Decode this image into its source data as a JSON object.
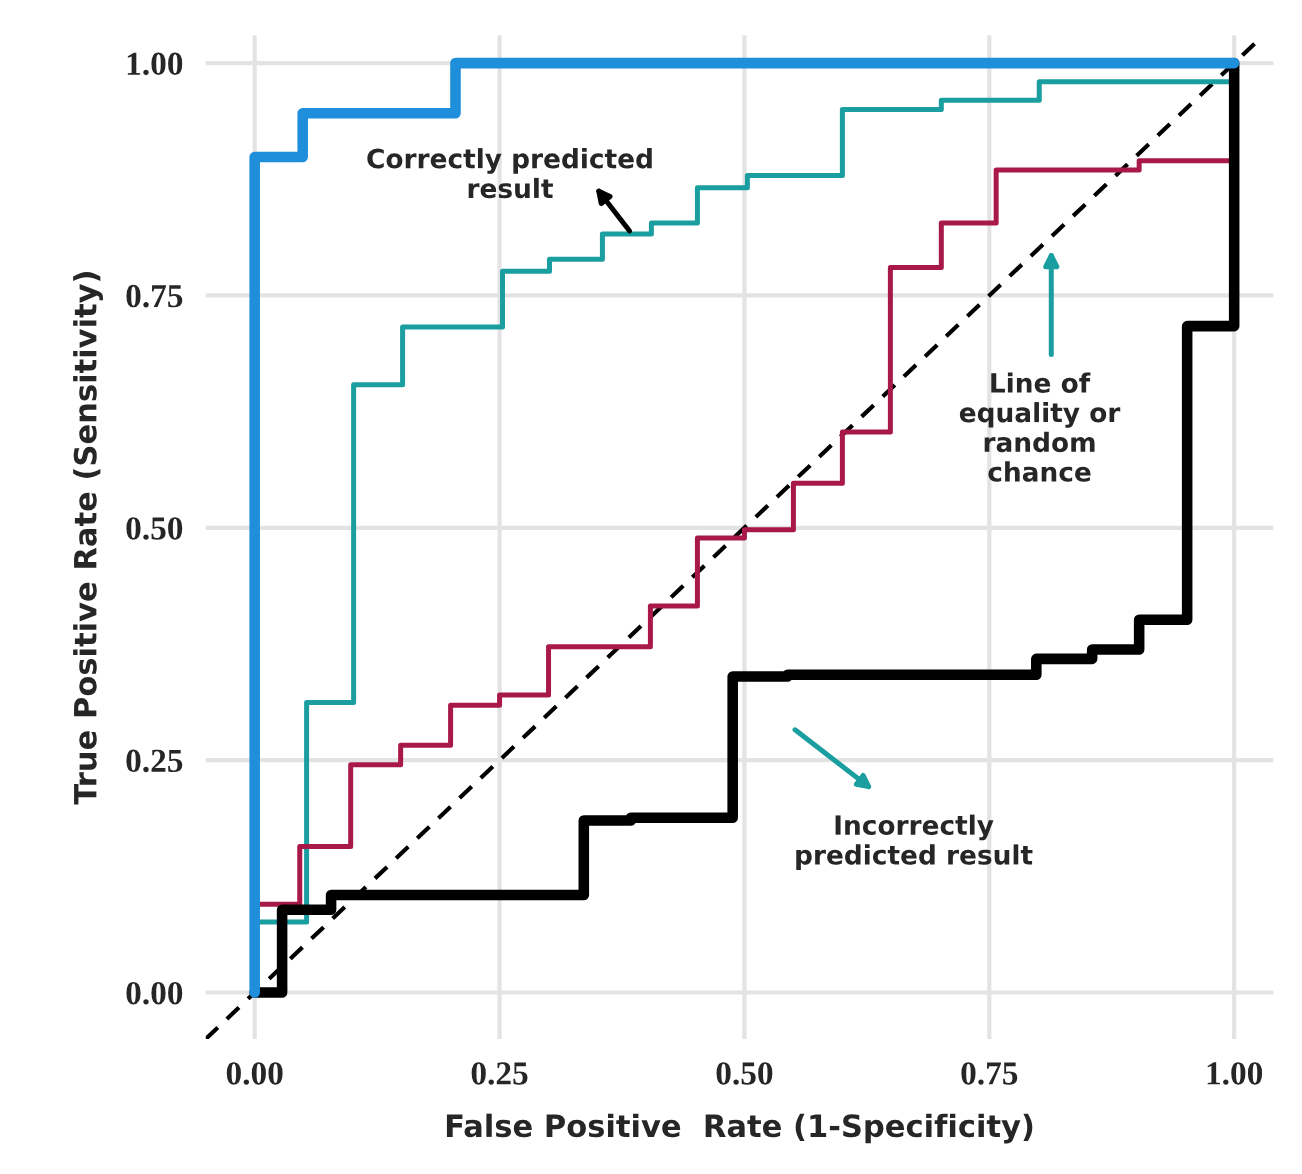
{
  "chart_data": {
    "type": "step",
    "xlabel": "False Positive  Rate (1-Specificity)",
    "ylabel": "True Positive Rate (Sensitivity)",
    "xlim": [
      -0.05,
      1.04
    ],
    "ylim": [
      -0.05,
      1.03
    ],
    "xticks": [
      {
        "value": 0,
        "label": "0.00"
      },
      {
        "value": 0.25,
        "label": "0.25"
      },
      {
        "value": 0.5,
        "label": "0.50"
      },
      {
        "value": 0.75,
        "label": "0.75"
      },
      {
        "value": 1,
        "label": "1.00"
      }
    ],
    "yticks": [
      {
        "value": 0,
        "label": "0.00"
      },
      {
        "value": 0.25,
        "label": "0.25"
      },
      {
        "value": 0.5,
        "label": "0.50"
      },
      {
        "value": 0.75,
        "label": "0.75"
      },
      {
        "value": 1,
        "label": "1.00"
      }
    ],
    "grid": true,
    "legend": false,
    "series": [
      {
        "type": "line",
        "color": "#000000",
        "line_style": "dashed",
        "x": [
          -0.05,
          1.03
        ],
        "values": [
          -0.05,
          1.03
        ]
      },
      {
        "color": "#1a9ea0",
        "x": [
          0,
          0,
          0.053,
          0.101,
          0.151,
          0.253,
          0.301,
          0.355,
          0.405,
          0.452,
          0.503,
          0.6,
          0.701,
          0.801,
          1
        ],
        "values": [
          0,
          0.076,
          0.312,
          0.654,
          0.716,
          0.776,
          0.789,
          0.816,
          0.828,
          0.866,
          0.879,
          0.95,
          0.96,
          0.98,
          1
        ]
      },
      {
        "color": "#a8194a",
        "x": [
          0,
          0,
          0.046,
          0.098,
          0.149,
          0.2,
          0.25,
          0.3,
          0.404,
          0.452,
          0.5,
          0.55,
          0.6,
          0.649,
          0.701,
          0.757,
          0.903,
          1
        ],
        "values": [
          0,
          0.095,
          0.157,
          0.245,
          0.266,
          0.309,
          0.32,
          0.372,
          0.416,
          0.489,
          0.498,
          0.548,
          0.603,
          0.78,
          0.828,
          0.885,
          0.895,
          0.98
        ]
      },
      {
        "color": "#000000",
        "x": [
          0,
          0.028,
          0.078,
          0.336,
          0.384,
          0.488,
          0.544,
          0.798,
          0.855,
          0.903,
          0.952,
          1
        ],
        "values": [
          0,
          0.089,
          0.105,
          0.185,
          0.188,
          0.34,
          0.342,
          0.359,
          0.369,
          0.401,
          0.717,
          1
        ]
      },
      {
        "color": "#1f8fdb",
        "x": [
          0,
          0,
          0.049,
          0.205,
          1
        ],
        "values": [
          0,
          0.899,
          0.946,
          1,
          1
        ]
      }
    ],
    "annotations": [
      "Correctly predicted\nresult",
      "Line of\nequality or\nrandom\nchance",
      "Incorrectly\npredicted result"
    ]
  }
}
